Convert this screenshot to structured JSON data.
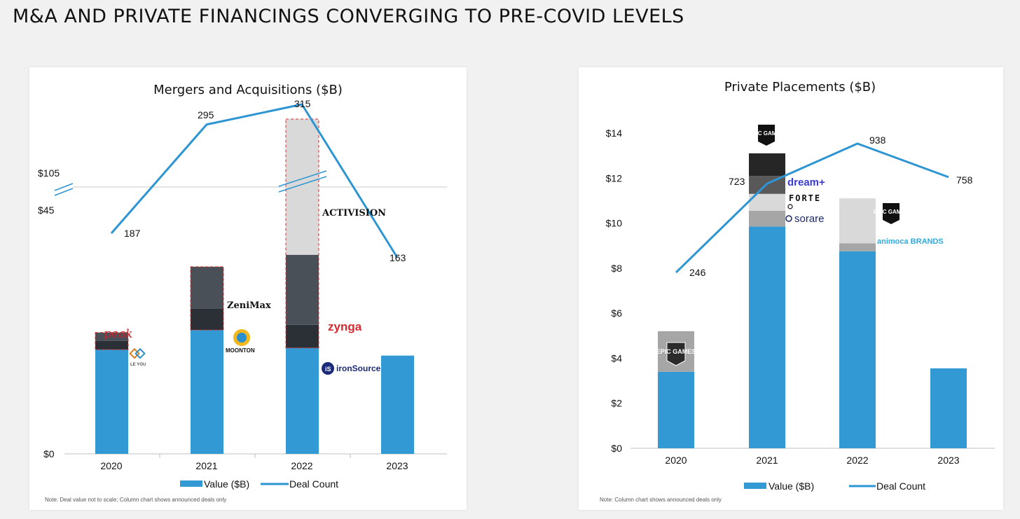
{
  "page": {
    "title": "M&A AND PRIVATE FINANCINGS CONVERGING TO PRE-COVID LEVELS"
  },
  "colors": {
    "value": "#3399d4",
    "line": "#2e95d3",
    "dark1": "#2b2f36",
    "dark2": "#4a5058",
    "light": "#d9d9d9",
    "mid": "#a6a6a6",
    "dashed": "#d9302a"
  },
  "chart_data": [
    {
      "type": "bar",
      "title": "Mergers and Acquisitions ($B)",
      "categories": [
        "2020",
        "2021",
        "2022",
        "2023"
      ],
      "y_tick_labels": [
        "$0",
        "$45",
        "$105"
      ],
      "axis_break": true,
      "series": [
        {
          "name": "Value ($B)",
          "values": [
            12.2,
            14.5,
            12.4,
            11.5
          ],
          "segments": [
            [
              12.2,
              1.0,
              1.0
            ],
            [
              14.5,
              2.5,
              4.9
            ],
            [
              12.4,
              2.7,
              8.2,
              95
            ],
            [
              11.5
            ]
          ]
        },
        {
          "name": "Deal Count",
          "type": "line",
          "values": [
            187,
            295,
            315,
            163
          ]
        }
      ],
      "deal_labels": [
        "187",
        "295",
        "315",
        "163"
      ],
      "logos": [
        "peak",
        "LE YOU",
        "ZeniMax",
        "MOONTON",
        "ACTIVISION",
        "zynga",
        "ironSource"
      ],
      "legend": [
        "Value ($B)",
        "Deal Count"
      ],
      "note": "Note: Deal value not to scale; Column chart shows announced deals only"
    },
    {
      "type": "bar",
      "title": "Private Placements ($B)",
      "categories": [
        "2020",
        "2021",
        "2022",
        "2023"
      ],
      "ylim": [
        0,
        14
      ],
      "y_ticks": [
        0,
        2,
        4,
        6,
        8,
        10,
        12,
        14
      ],
      "y_tick_labels": [
        "$0",
        "$2",
        "$4",
        "$6",
        "$8",
        "$10",
        "$12",
        "$14"
      ],
      "series": [
        {
          "name": "Value ($B)",
          "values": [
            3.4,
            9.85,
            8.75,
            3.55
          ],
          "segments": [
            [
              3.4,
              1.8
            ],
            [
              9.85,
              0.7,
              0.75,
              0.8,
              1.0
            ],
            [
              8.75,
              0.35,
              2.0
            ],
            [
              3.55
            ]
          ]
        },
        {
          "name": "Deal Count",
          "type": "line",
          "values": [
            246,
            723,
            938,
            758
          ]
        }
      ],
      "deal_labels": [
        "246",
        "723",
        "938",
        "758"
      ],
      "logos": [
        "EPIC GAMES",
        "EPIC GAMES",
        "dream+",
        "FORTE",
        "sorare",
        "EPIC GAMES",
        "animoca BRANDS"
      ],
      "legend": [
        "Value ($B)",
        "Deal Count"
      ],
      "note": "Note: Column chart shows announced deals only"
    }
  ]
}
